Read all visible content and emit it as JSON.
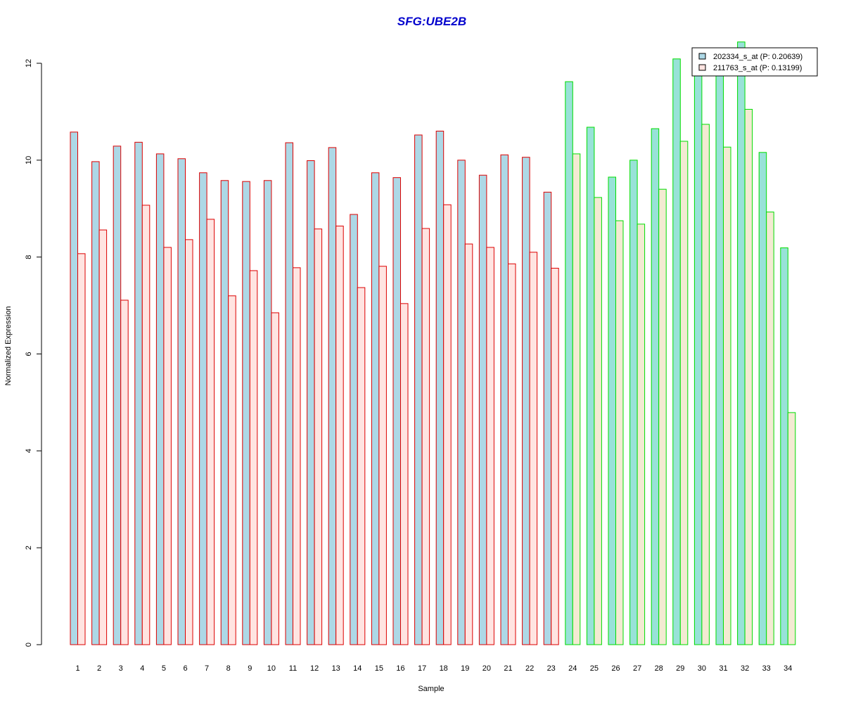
{
  "chart_data": {
    "type": "bar",
    "title": "SFG:UBE2B",
    "xlabel": "Sample",
    "ylabel": "Normalized Expression",
    "ylim": [
      0,
      12.4
    ],
    "yticks": [
      "0",
      "2",
      "4",
      "6",
      "8",
      "10",
      "12"
    ],
    "categories": [
      "1",
      "2",
      "3",
      "4",
      "5",
      "6",
      "7",
      "8",
      "9",
      "10",
      "11",
      "12",
      "13",
      "14",
      "15",
      "16",
      "17",
      "18",
      "19",
      "20",
      "21",
      "22",
      "23",
      "24",
      "25",
      "26",
      "27",
      "28",
      "29",
      "30",
      "31",
      "32",
      "33",
      "34"
    ],
    "series": [
      {
        "name": "202334_s_at (P: 0.20639)",
        "fill": "#add8e6",
        "values": [
          10.58,
          9.97,
          10.29,
          10.37,
          10.13,
          10.03,
          9.74,
          9.58,
          9.56,
          9.58,
          10.36,
          9.99,
          10.26,
          8.88,
          9.74,
          9.64,
          10.52,
          10.6,
          10.0,
          9.69,
          10.11,
          10.06,
          9.34,
          11.62,
          10.68,
          9.65,
          10.0,
          10.65,
          12.09,
          11.75,
          11.75,
          12.44,
          10.16,
          8.19
        ]
      },
      {
        "name": "211763_s_at (P: 0.13199)",
        "fill": "#ffe4e1",
        "values": [
          8.07,
          8.56,
          7.11,
          9.07,
          8.2,
          8.36,
          8.78,
          7.2,
          7.72,
          6.85,
          7.78,
          8.58,
          8.64,
          7.37,
          7.81,
          7.04,
          8.59,
          9.08,
          8.27,
          8.2,
          7.86,
          8.1,
          7.77,
          10.13,
          9.23,
          8.75,
          8.68,
          9.4,
          10.39,
          10.74,
          10.27,
          11.05,
          8.93,
          4.79
        ]
      }
    ],
    "group_b_fills": [
      "#98e2d8",
      "#f3ead2"
    ],
    "colors": {
      "title": "#0000cd",
      "group_a_border": "#dd0000",
      "group_b_border": "#00dd00"
    },
    "group_a_count": 23,
    "legend_position": "top-right"
  }
}
